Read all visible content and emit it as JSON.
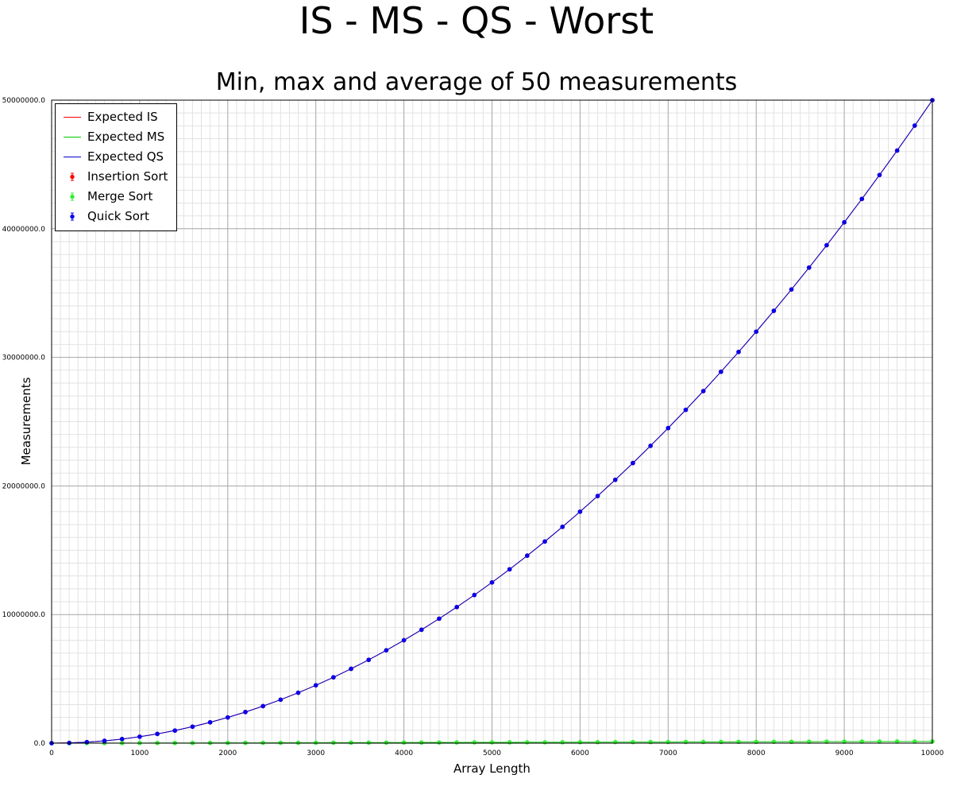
{
  "chart_data": {
    "type": "line",
    "title": "IS - MS - QS - Worst",
    "subtitle": "Min, max and average of 50 measurements",
    "xlabel": "Array Length",
    "ylabel": "Measurements",
    "xlim": [
      0,
      10000
    ],
    "ylim": [
      0,
      50000000
    ],
    "x_ticks": [
      0,
      1000,
      2000,
      3000,
      4000,
      5000,
      6000,
      7000,
      8000,
      9000,
      10000
    ],
    "x_tick_labels": [
      "0",
      "1000",
      "2000",
      "3000",
      "4000",
      "5000",
      "6000",
      "7000",
      "8000",
      "9000",
      "10000"
    ],
    "y_ticks": [
      0,
      10000000,
      20000000,
      30000000,
      40000000,
      50000000
    ],
    "y_tick_labels": [
      "0.0",
      "10000000.0",
      "20000000.0",
      "30000000.0",
      "40000000.0",
      "50000000.0"
    ],
    "grid": true,
    "legend_position": "top-left",
    "x": [
      0,
      200,
      400,
      600,
      800,
      1000,
      1200,
      1400,
      1600,
      1800,
      2000,
      2200,
      2400,
      2600,
      2800,
      3000,
      3200,
      3400,
      3600,
      3800,
      4000,
      4200,
      4400,
      4600,
      4800,
      5000,
      5200,
      5400,
      5600,
      5800,
      6000,
      6200,
      6400,
      6600,
      6800,
      7000,
      7200,
      7400,
      7600,
      7800,
      8000,
      8200,
      8400,
      8600,
      8800,
      9000,
      9200,
      9400,
      9600,
      9800,
      10000
    ],
    "series": [
      {
        "name": "Expected IS",
        "kind": "line",
        "color": "#ff0000",
        "values": [
          0,
          20000,
          80000,
          180000,
          320000,
          500000,
          720000,
          980000,
          1280000,
          1620000,
          2000000,
          2420000,
          2880000,
          3380000,
          3920000,
          4500000,
          5120000,
          5780000,
          6480000,
          7220000,
          8000000,
          8820000,
          9680000,
          10580000,
          11520000,
          12500000,
          13520000,
          14580000,
          15680000,
          16820000,
          18000000,
          19220000,
          20480000,
          21780000,
          23120000,
          24500000,
          25920000,
          27380000,
          28880000,
          30420000,
          32000000,
          33620000,
          35280000,
          36980000,
          38720000,
          40500000,
          42320000,
          44180000,
          46080000,
          48020000,
          50000000
        ]
      },
      {
        "name": "Expected MS",
        "kind": "line",
        "color": "#00cc00",
        "values": [
          0,
          1529,
          3458,
          5537,
          7715,
          9966,
          12274,
          14628,
          17024,
          19455,
          21918,
          24408,
          26924,
          29461,
          32019,
          34597,
          37191,
          39801,
          42426,
          45064,
          47715,
          50378,
          53053,
          55738,
          58433,
          61138,
          63853,
          66576,
          69308,
          72048,
          74796,
          77551,
          80314,
          83083,
          85859,
          88642,
          91431,
          94226,
          97027,
          99834,
          102646,
          105464,
          108287,
          111115,
          113948,
          116785,
          119628,
          122475,
          125326,
          128182,
          131042
        ]
      },
      {
        "name": "Expected QS",
        "kind": "line",
        "color": "#0000cc",
        "values": [
          0,
          20000,
          80000,
          180000,
          320000,
          500000,
          720000,
          980000,
          1280000,
          1620000,
          2000000,
          2420000,
          2880000,
          3380000,
          3920000,
          4500000,
          5120000,
          5780000,
          6480000,
          7220000,
          8000000,
          8820000,
          9680000,
          10580000,
          11520000,
          12500000,
          13520000,
          14580000,
          15680000,
          16820000,
          18000000,
          19220000,
          20480000,
          21780000,
          23120000,
          24500000,
          25920000,
          27380000,
          28880000,
          30420000,
          32000000,
          33620000,
          35280000,
          36980000,
          38720000,
          40500000,
          42320000,
          44180000,
          46080000,
          48020000,
          50000000
        ]
      },
      {
        "name": "Insertion Sort",
        "kind": "errorbar",
        "color": "#ff0000",
        "values": [
          0,
          20000,
          80000,
          180000,
          320000,
          500000,
          720000,
          980000,
          1280000,
          1620000,
          2000000,
          2420000,
          2880000,
          3380000,
          3920000,
          4500000,
          5120000,
          5780000,
          6480000,
          7220000,
          8000000,
          8820000,
          9680000,
          10580000,
          11520000,
          12500000,
          13520000,
          14580000,
          15680000,
          16820000,
          18000000,
          19220000,
          20480000,
          21780000,
          23120000,
          24500000,
          25920000,
          27380000,
          28880000,
          30420000,
          32000000,
          33620000,
          35280000,
          36980000,
          38720000,
          40500000,
          42320000,
          44180000,
          46080000,
          48020000,
          50000000
        ]
      },
      {
        "name": "Merge Sort",
        "kind": "errorbar",
        "color": "#33ee33",
        "values": [
          0,
          1529,
          3458,
          5537,
          7715,
          9966,
          12274,
          14628,
          17024,
          19455,
          21918,
          24408,
          26924,
          29461,
          32019,
          34597,
          37191,
          39801,
          42426,
          45064,
          47715,
          50378,
          53053,
          55738,
          58433,
          61138,
          63853,
          66576,
          69308,
          72048,
          74796,
          77551,
          80314,
          83083,
          85859,
          88642,
          91431,
          94226,
          97027,
          99834,
          102646,
          105464,
          108287,
          111115,
          113948,
          116785,
          119628,
          122475,
          125326,
          128182,
          131042
        ]
      },
      {
        "name": "Quick Sort",
        "kind": "errorbar",
        "color": "#0000ee",
        "values": [
          0,
          20000,
          80000,
          180000,
          320000,
          500000,
          720000,
          980000,
          1280000,
          1620000,
          2000000,
          2420000,
          2880000,
          3380000,
          3920000,
          4500000,
          5120000,
          5780000,
          6480000,
          7220000,
          8000000,
          8820000,
          9680000,
          10580000,
          11520000,
          12500000,
          13520000,
          14580000,
          15680000,
          16820000,
          18000000,
          19220000,
          20480000,
          21780000,
          23120000,
          24500000,
          25920000,
          27380000,
          28880000,
          30420000,
          32000000,
          33620000,
          35280000,
          36980000,
          38720000,
          40500000,
          42320000,
          44180000,
          46080000,
          48020000,
          50000000
        ]
      }
    ]
  },
  "legend": {
    "items": [
      {
        "label": "Expected IS",
        "symbol": "line",
        "color": "#ff0000"
      },
      {
        "label": "Expected MS",
        "symbol": "line",
        "color": "#00cc00"
      },
      {
        "label": "Expected QS",
        "symbol": "line",
        "color": "#0000cc"
      },
      {
        "label": "Insertion Sort",
        "symbol": "point",
        "color": "#ff0000"
      },
      {
        "label": "Merge Sort",
        "symbol": "point",
        "color": "#33ee33"
      },
      {
        "label": "Quick Sort",
        "symbol": "point",
        "color": "#0000ee"
      }
    ]
  }
}
